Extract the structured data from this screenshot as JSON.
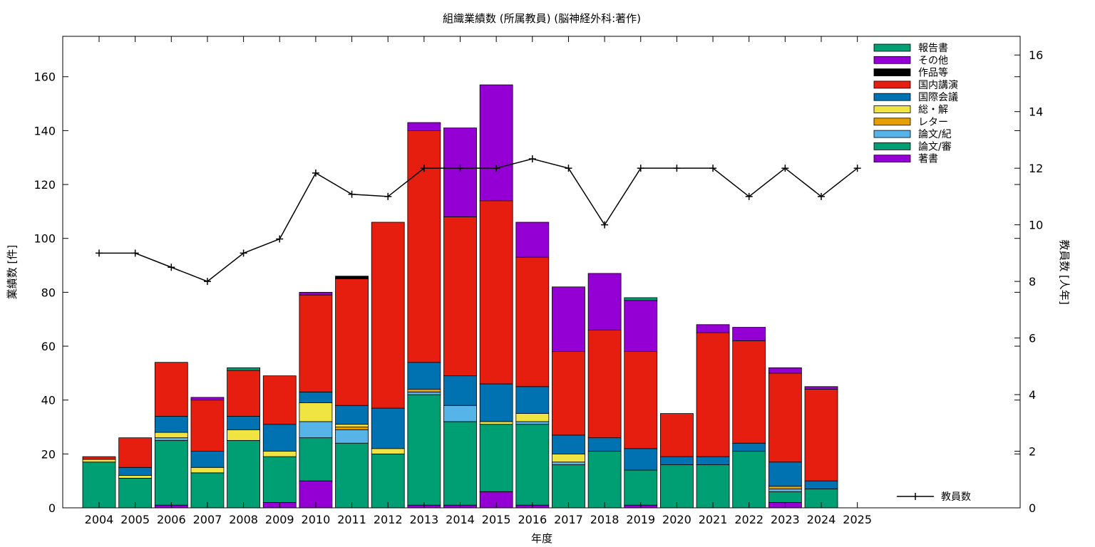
{
  "chart_data": {
    "type": "bar",
    "stacked": true,
    "title": "組織業績数 (所属教員) (脳神経外科:著作)",
    "xlabel": "年度",
    "ylabel": "業績数 [件]",
    "y2label": "教員数 [人年]",
    "ylim": [
      0,
      175
    ],
    "y2lim": [
      0,
      16.66
    ],
    "yticks": [
      0,
      20,
      40,
      60,
      80,
      100,
      120,
      140,
      160
    ],
    "y2ticks": [
      0,
      2,
      4,
      6,
      8,
      10,
      12,
      14,
      16
    ],
    "legend_position": "top-right",
    "grid": false,
    "categories": [
      "2004",
      "2005",
      "2006",
      "2007",
      "2008",
      "2009",
      "2010",
      "2011",
      "2012",
      "2013",
      "2014",
      "2015",
      "2016",
      "2017",
      "2018",
      "2019",
      "2020",
      "2021",
      "2022",
      "2023",
      "2024",
      "2025"
    ],
    "series": [
      {
        "name": "著書",
        "color": "#9400d3",
        "values": [
          0,
          0,
          1,
          0,
          0,
          2,
          10,
          0,
          0,
          1,
          1,
          6,
          1,
          0,
          0,
          1,
          0,
          0,
          0,
          2,
          0,
          0
        ]
      },
      {
        "name": "論文/審",
        "color": "#009e73",
        "values": [
          17,
          11,
          24,
          13,
          25,
          17,
          16,
          24,
          20,
          41,
          31,
          25,
          30,
          16,
          21,
          13,
          16,
          16,
          21,
          4,
          7,
          0
        ]
      },
      {
        "name": "論文/紀",
        "color": "#56b4e9",
        "values": [
          0,
          0,
          1,
          0,
          0,
          0,
          6,
          5,
          0,
          1,
          6,
          0,
          1,
          1,
          0,
          0,
          0,
          0,
          0,
          1,
          0,
          0
        ]
      },
      {
        "name": "レター",
        "color": "#e69f00",
        "values": [
          0,
          0,
          0,
          0,
          0,
          0,
          0,
          1,
          0,
          1,
          0,
          0,
          0,
          0,
          0,
          0,
          0,
          0,
          0,
          1,
          0,
          0
        ]
      },
      {
        "name": "総・解",
        "color": "#f0e442",
        "values": [
          1,
          1,
          2,
          2,
          4,
          2,
          7,
          1,
          2,
          0,
          0,
          1,
          3,
          3,
          0,
          0,
          0,
          0,
          0,
          0,
          0,
          0
        ]
      },
      {
        "name": "国際会議",
        "color": "#0072b2",
        "values": [
          0,
          3,
          6,
          6,
          5,
          10,
          4,
          7,
          15,
          10,
          11,
          14,
          10,
          7,
          5,
          8,
          3,
          3,
          3,
          9,
          3,
          0
        ]
      },
      {
        "name": "国内講演",
        "color": "#e51e10",
        "values": [
          1,
          11,
          20,
          19,
          17,
          18,
          36,
          47,
          69,
          86,
          59,
          68,
          48,
          31,
          40,
          36,
          16,
          46,
          38,
          33,
          34,
          0
        ]
      },
      {
        "name": "作品等",
        "color": "#000000",
        "values": [
          0,
          0,
          0,
          0,
          0,
          0,
          0,
          1,
          0,
          0,
          0,
          0,
          0,
          0,
          0,
          0,
          0,
          0,
          0,
          0,
          0,
          0
        ]
      },
      {
        "name": "その他",
        "color": "#9400d3",
        "values": [
          0,
          0,
          0,
          1,
          0,
          0,
          1,
          0,
          0,
          3,
          33,
          43,
          13,
          24,
          21,
          19,
          0,
          3,
          5,
          2,
          1,
          0
        ]
      },
      {
        "name": "報告書",
        "color": "#009e73",
        "values": [
          0,
          0,
          0,
          0,
          1,
          0,
          0,
          0,
          0,
          0,
          0,
          0,
          0,
          0,
          0,
          1,
          0,
          0,
          0,
          0,
          0,
          0
        ]
      }
    ],
    "line": {
      "name": "教員数",
      "color": "#000000",
      "axis": "y2",
      "values": [
        9,
        9,
        8.5,
        8,
        9,
        9.5,
        11.83,
        11.08,
        11,
        12,
        12,
        12,
        12.33,
        12,
        10,
        12,
        12,
        12,
        11,
        12,
        11,
        12
      ]
    }
  }
}
